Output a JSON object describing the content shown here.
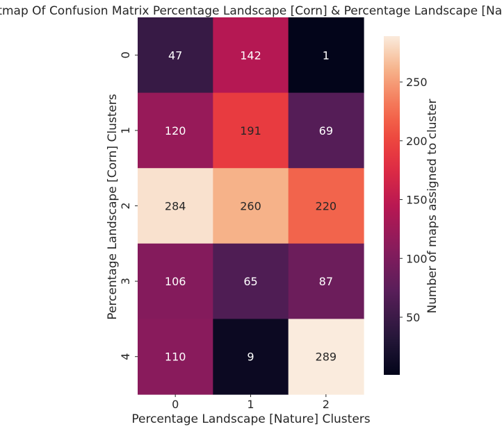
{
  "chart_data": {
    "type": "heatmap",
    "title": "Heatmap Of Confusion Matrix Percentage Landscape [Corn] & Percentage Landscape [Nature]",
    "xlabel": "Percentage Landscape [Nature] Clusters",
    "ylabel": "Percentage Landscape [Corn] Clusters",
    "x_categories": [
      "0",
      "1",
      "2"
    ],
    "y_categories": [
      "0",
      "1",
      "2",
      "3",
      "4"
    ],
    "values": [
      [
        47,
        142,
        1
      ],
      [
        120,
        191,
        69
      ],
      [
        284,
        260,
        220
      ],
      [
        106,
        65,
        87
      ],
      [
        110,
        9,
        289
      ]
    ],
    "colorbar": {
      "label": "Number of maps assigned to cluster",
      "ticks": [
        50,
        100,
        150,
        200,
        250
      ],
      "range": [
        1,
        289
      ],
      "colormap": "rocket"
    },
    "annotations_shown": true,
    "grid": false
  }
}
